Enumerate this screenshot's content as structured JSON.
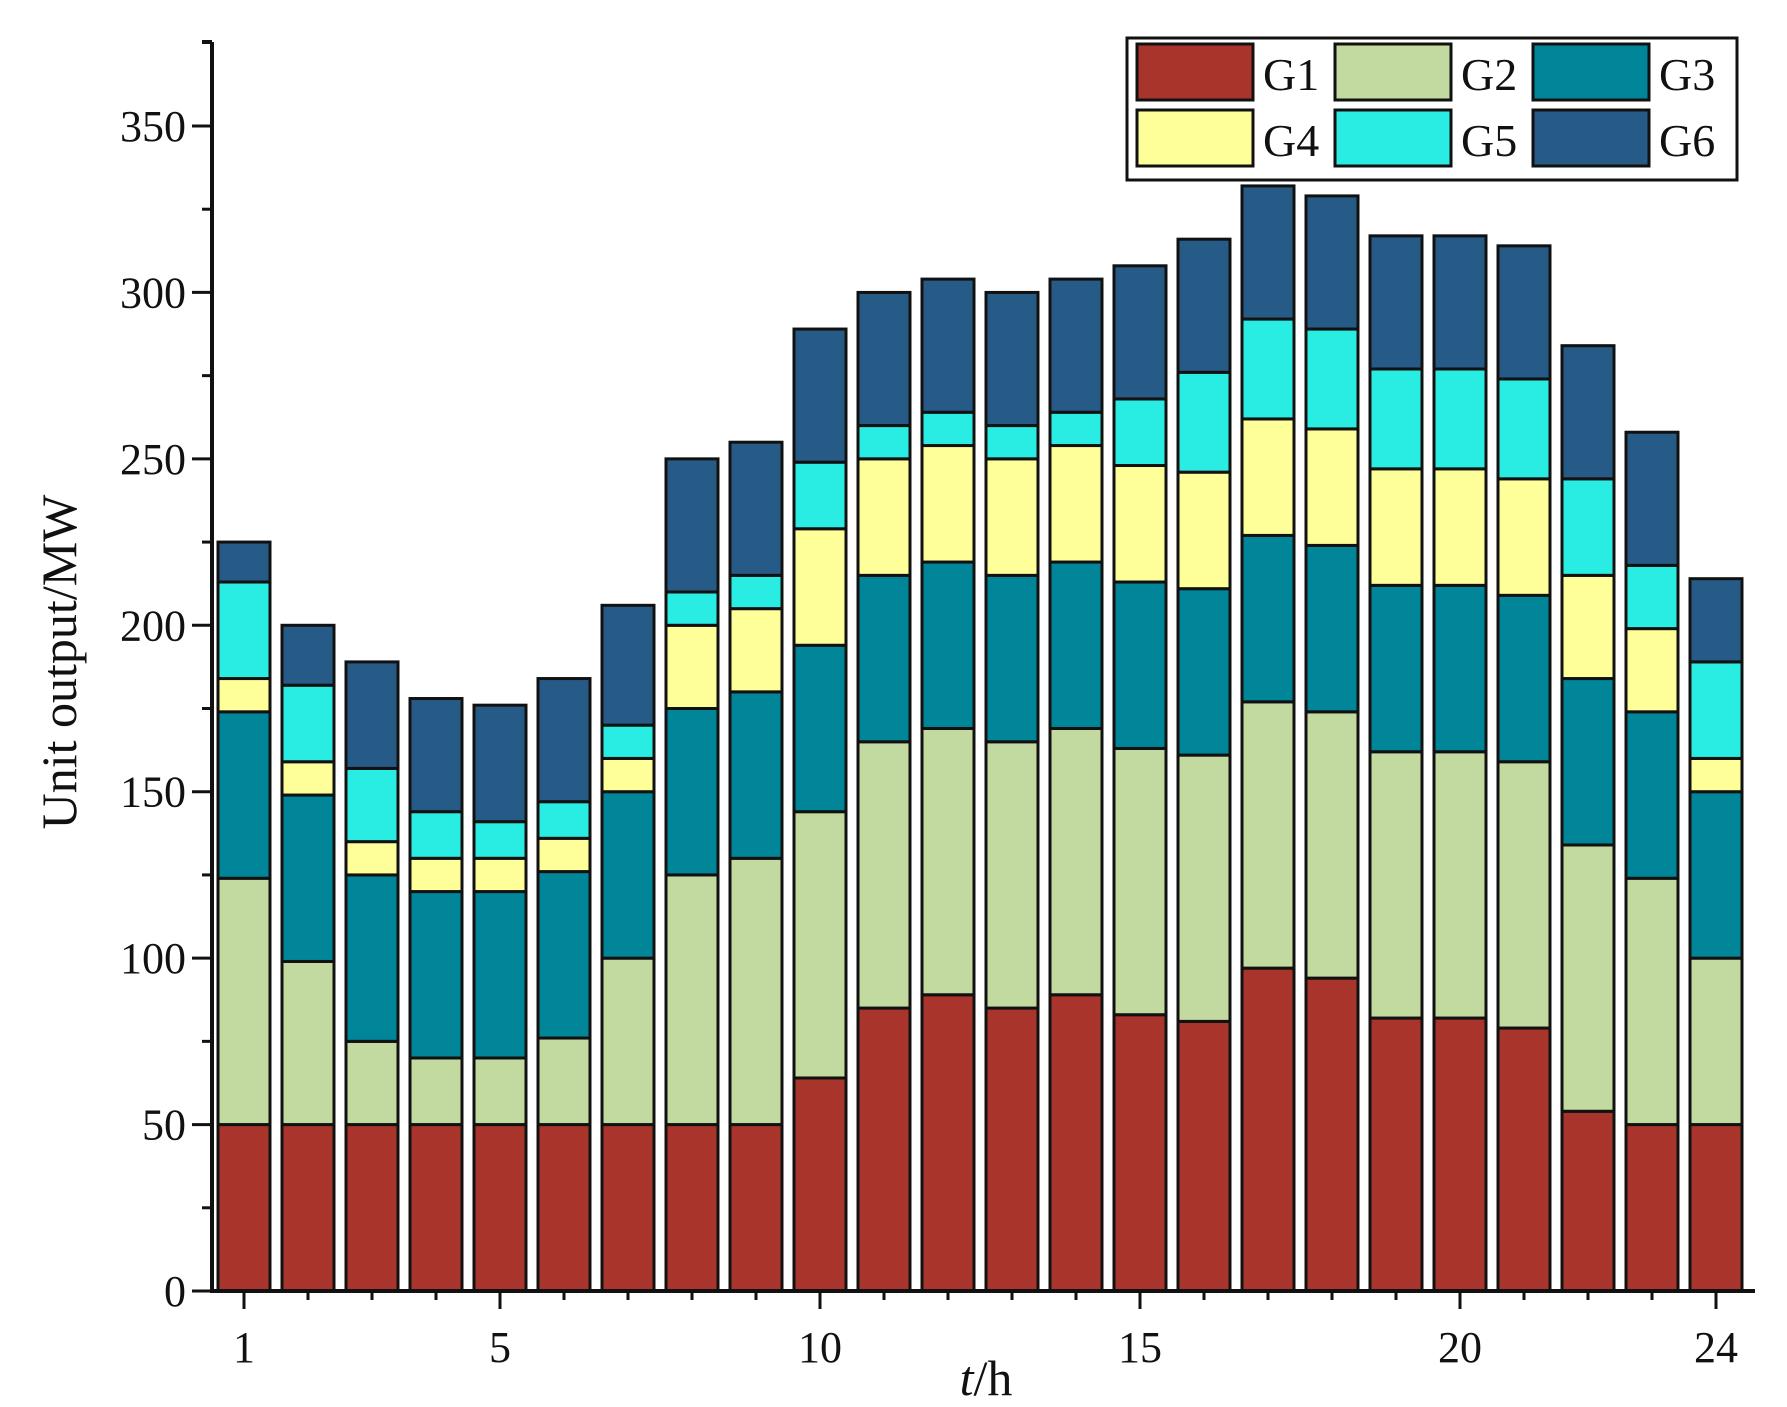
{
  "chart_data": {
    "type": "bar",
    "stacked": true,
    "xlabel_italic": "t",
    "xlabel_unit": "/h",
    "ylabel": "Unit output/MW",
    "ylim": [
      0,
      375
    ],
    "y_ticks": [
      0,
      50,
      100,
      150,
      200,
      250,
      300,
      350
    ],
    "x_tick_labels": [
      {
        "hour": 1,
        "label": "1"
      },
      {
        "hour": 5,
        "label": "5"
      },
      {
        "hour": 10,
        "label": "10"
      },
      {
        "hour": 15,
        "label": "15"
      },
      {
        "hour": 20,
        "label": "20"
      },
      {
        "hour": 24,
        "label": "24"
      }
    ],
    "categories": [
      1,
      2,
      3,
      4,
      5,
      6,
      7,
      8,
      9,
      10,
      11,
      12,
      13,
      14,
      15,
      16,
      17,
      18,
      19,
      20,
      21,
      22,
      23,
      24
    ],
    "legend_position": "top-right",
    "grid": false,
    "series": [
      {
        "name": "G1",
        "color": "#a8342c",
        "values": [
          50,
          50,
          50,
          50,
          50,
          50,
          50,
          50,
          50,
          64,
          85,
          89,
          85,
          89,
          83,
          81,
          97,
          94,
          82,
          82,
          79,
          54,
          50,
          50
        ]
      },
      {
        "name": "G2",
        "color": "#c2d9a0",
        "values": [
          74,
          49,
          25,
          20,
          20,
          26,
          50,
          75,
          80,
          80,
          80,
          80,
          80,
          80,
          80,
          80,
          80,
          80,
          80,
          80,
          80,
          80,
          74,
          50
        ]
      },
      {
        "name": "G3",
        "color": "#008599",
        "values": [
          50,
          50,
          50,
          50,
          50,
          50,
          50,
          50,
          50,
          50,
          50,
          50,
          50,
          50,
          50,
          50,
          50,
          50,
          50,
          50,
          50,
          50,
          50,
          50
        ]
      },
      {
        "name": "G4",
        "color": "#ffff99",
        "values": [
          10,
          10,
          10,
          10,
          10,
          10,
          10,
          25,
          25,
          35,
          35,
          35,
          35,
          35,
          35,
          35,
          35,
          35,
          35,
          35,
          35,
          31,
          25,
          10
        ]
      },
      {
        "name": "G5",
        "color": "#29ece3",
        "values": [
          29,
          23,
          22,
          14,
          11,
          11,
          10,
          10,
          10,
          20,
          10,
          10,
          10,
          10,
          20,
          30,
          30,
          30,
          30,
          30,
          30,
          29,
          19,
          29
        ]
      },
      {
        "name": "G6",
        "color": "#265a87",
        "values": [
          12,
          18,
          32,
          34,
          35,
          37,
          36,
          40,
          40,
          40,
          40,
          40,
          40,
          40,
          40,
          40,
          40,
          40,
          40,
          40,
          40,
          40,
          40,
          25
        ]
      }
    ]
  }
}
